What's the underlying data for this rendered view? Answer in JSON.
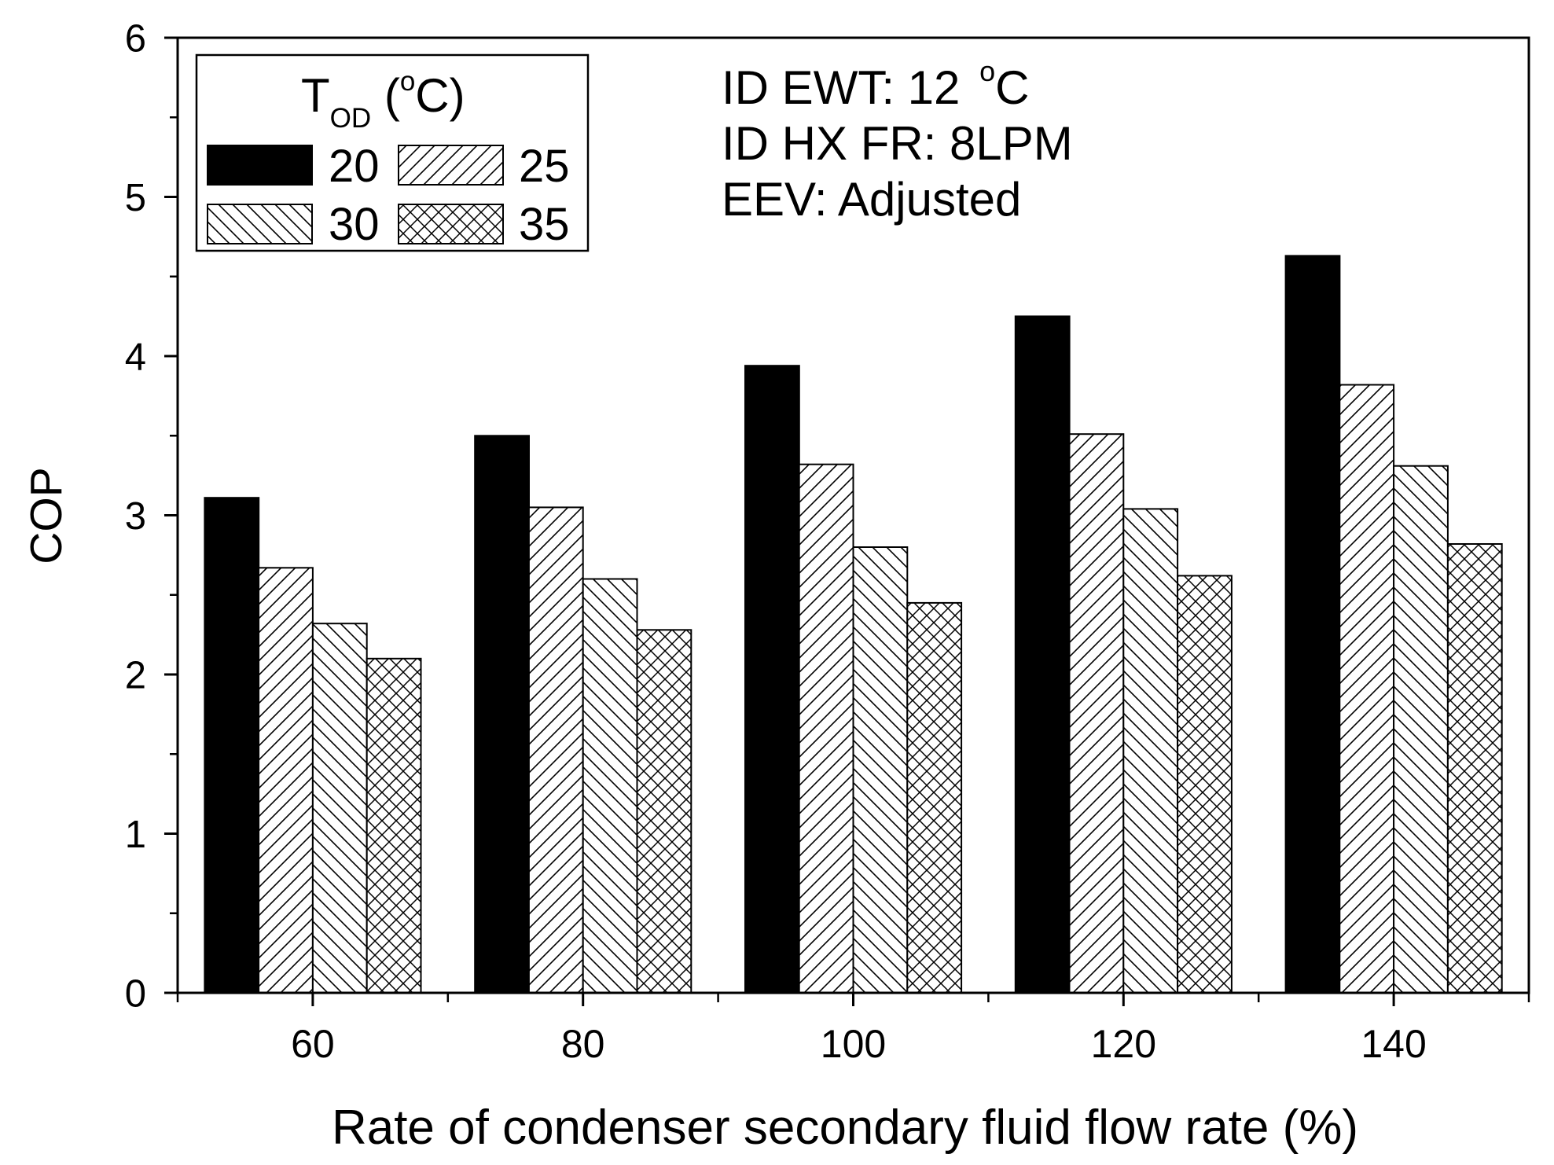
{
  "chart_data": {
    "type": "bar",
    "xlabel": "Rate of condenser secondary fluid flow rate (%)",
    "ylabel": "COP",
    "categories": [
      "60",
      "80",
      "100",
      "120",
      "140"
    ],
    "xlim": [
      50,
      150
    ],
    "ylim": [
      0,
      6
    ],
    "yticks": [
      0,
      1,
      2,
      3,
      4,
      5,
      6
    ],
    "grid": false,
    "legend_position": "top-left",
    "legend_title": {
      "symbol": "T",
      "subscript": "OD",
      "open": " (",
      "superscript": "o",
      "close": "C)"
    },
    "series": [
      {
        "name": "20",
        "pattern": "solid",
        "values": [
          3.11,
          3.5,
          3.94,
          4.25,
          4.63
        ]
      },
      {
        "name": "25",
        "pattern": "forward-diagonal",
        "values": [
          2.67,
          3.05,
          3.32,
          3.51,
          3.82
        ]
      },
      {
        "name": "30",
        "pattern": "back-diagonal",
        "values": [
          2.32,
          2.6,
          2.8,
          3.04,
          3.31
        ]
      },
      {
        "name": "35",
        "pattern": "crosshatch",
        "values": [
          2.1,
          2.28,
          2.45,
          2.62,
          2.82
        ]
      }
    ],
    "annotations": [
      {
        "text": "ID EWT: 12 ",
        "superscript": "o",
        "unit": "C"
      },
      {
        "text": "ID HX FR: 8LPM"
      },
      {
        "text": "EEV: Adjusted"
      }
    ],
    "colors": {
      "bar_fill": "#000000",
      "hatch": "#000000",
      "background": "#ffffff"
    }
  }
}
